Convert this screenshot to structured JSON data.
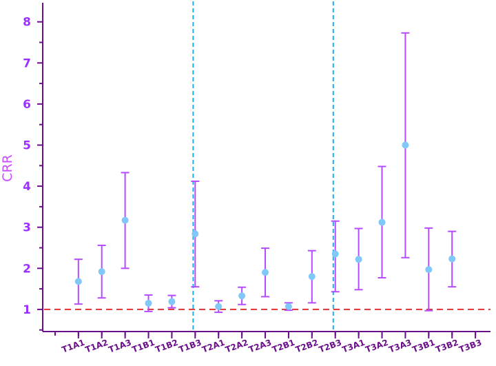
{
  "chart_data": {
    "type": "scatter",
    "title": "",
    "xlabel": "",
    "ylabel": "CRR",
    "ylim": [
      0,
      8.5
    ],
    "yticks": [
      1,
      2,
      3,
      4,
      5,
      6,
      7,
      8
    ],
    "categories": [
      "T1A1",
      "T1A2",
      "T1A3",
      "T1B1",
      "T1B2",
      "T1B3",
      "T2A1",
      "T2A2",
      "T2A3",
      "T2B1",
      "T2B2",
      "T2B3",
      "T3A1",
      "T3A2",
      "T3A3",
      "T3B1",
      "T3B2",
      "T3B3"
    ],
    "values": [
      1.68,
      1.92,
      3.17,
      1.15,
      1.19,
      2.84,
      1.07,
      1.33,
      1.9,
      1.07,
      1.8,
      2.35,
      2.22,
      3.12,
      5.0,
      1.97,
      2.23,
      null
    ],
    "lower": [
      1.13,
      1.28,
      2.0,
      0.95,
      1.04,
      1.55,
      0.93,
      1.12,
      1.31,
      0.98,
      1.16,
      1.43,
      1.48,
      1.77,
      2.26,
      0.97,
      1.55,
      null
    ],
    "upper": [
      2.22,
      2.56,
      4.33,
      1.35,
      1.34,
      4.12,
      1.21,
      1.54,
      2.49,
      1.16,
      2.43,
      3.15,
      2.97,
      4.48,
      7.73,
      2.98,
      2.9,
      null
    ],
    "reference_line": 1,
    "group_dividers_after": [
      "T1B3",
      "T2B3"
    ],
    "grid": false,
    "legend": "none",
    "colors": {
      "axis": "#6a0e8a",
      "ytick_label": "#9b30ff",
      "xtick_label": "#6a0e8a",
      "ylabel": "#c84bff",
      "point": "#7fc8f8",
      "errorbar": "#b44bff",
      "reference_line": "#e03030",
      "divider": "#1ab0f0"
    }
  }
}
